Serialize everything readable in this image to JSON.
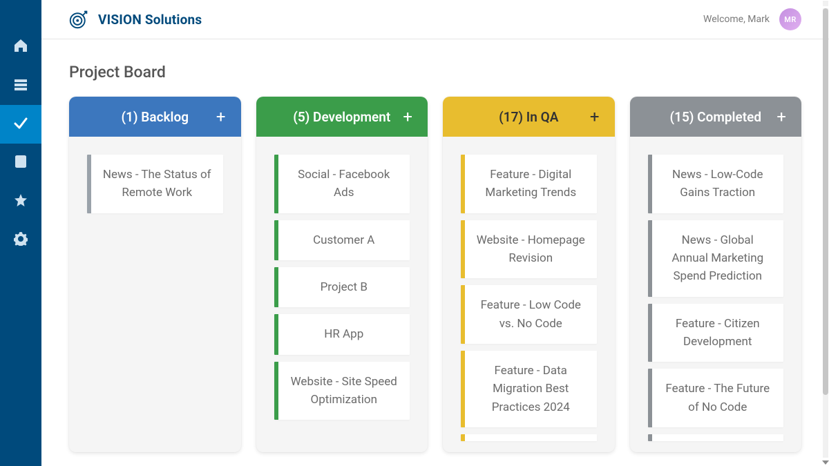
{
  "header": {
    "brand": "VISION Solutions",
    "welcome": "Welcome, Mark",
    "avatar_initials": "MR",
    "avatar_gradient_from": "#c48fe0",
    "avatar_gradient_to": "#e0b0f0"
  },
  "page": {
    "title": "Project Board"
  },
  "sidebar": {
    "background_color": "#004a7c",
    "active_color": "#0084c8",
    "items": [
      {
        "name": "home",
        "active": false
      },
      {
        "name": "stack",
        "active": false
      },
      {
        "name": "check",
        "active": true
      },
      {
        "name": "book",
        "active": false
      },
      {
        "name": "star",
        "active": false
      },
      {
        "name": "settings",
        "active": false
      }
    ]
  },
  "columns": [
    {
      "count": 1,
      "label": "Backlog",
      "header_color": "#3c77be",
      "accent_color": "#9aa2aa",
      "cards": [
        "News - The Status of Remote Work"
      ]
    },
    {
      "count": 5,
      "label": "Development",
      "header_color": "#3b9d4a",
      "accent_color": "#3b9d4a",
      "cards": [
        "Social - Facebook Ads",
        "Customer A",
        "Project B",
        "HR App",
        "Website - Site Speed Optimization"
      ]
    },
    {
      "count": 17,
      "label": "In QA",
      "header_color": "#e8bd2f",
      "header_text_color": "#333333",
      "accent_color": "#e8bd2f",
      "cards": [
        "Feature - Digital Marketing Trends",
        "Website - Homepage Revision",
        "Feature - Low Code vs. No Code",
        "Feature - Data Migration Best Practices 2024"
      ]
    },
    {
      "count": 15,
      "label": "Completed",
      "header_color": "#8c9196",
      "accent_color": "#8c9196",
      "cards": [
        "News - Low-Code Gains Traction",
        "News - Global Annual Marketing Spend Prediction",
        "Feature - Citizen Development",
        "Feature - The Future of No Code"
      ]
    }
  ],
  "ui": {
    "add_glyph": "+"
  }
}
